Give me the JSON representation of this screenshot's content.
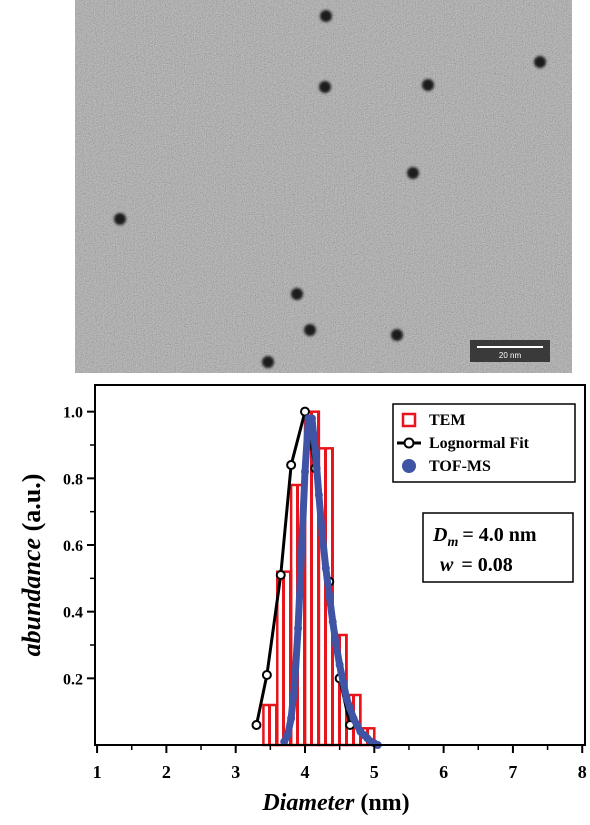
{
  "image": {
    "scale_bar": "20 nm"
  },
  "chart_data": {
    "type": "line",
    "xlabel": {
      "italic": "Diameter",
      "text": "(nm)"
    },
    "ylabel": {
      "italic": "abundance",
      "text": "(a.u.)"
    },
    "xlim": [
      0.97,
      8.04
    ],
    "xticks": [
      1,
      2,
      3,
      4,
      5,
      6,
      7,
      8
    ],
    "ylim": [
      0,
      1.08
    ],
    "yticks": [
      0.2,
      0.4,
      0.6,
      0.8,
      {
        "value": 1,
        "label": "1.0"
      }
    ],
    "legend": "upper right",
    "annotations": [
      {
        "symbol": "D",
        "subscript": "m",
        "text": "= 4.0 nm"
      },
      {
        "symbol": "w",
        "text": "= 0.08"
      }
    ],
    "series": [
      {
        "name": "TEM",
        "type": "histogram",
        "color": "#e8141b",
        "bins": [
          3.4,
          3.6,
          3.8,
          4.0,
          4.2,
          4.4,
          4.6,
          4.8,
          5.0
        ],
        "values": [
          0.12,
          0.52,
          0.78,
          1.0,
          0.89,
          0.33,
          0.15,
          0.05
        ]
      },
      {
        "name": "Lognormal Fit",
        "type": "line",
        "color": "#000000",
        "x": [
          3.3,
          3.45,
          3.65,
          3.8,
          4.0,
          4.15,
          4.35,
          4.5,
          4.65
        ],
        "values": [
          0.06,
          0.21,
          0.51,
          0.84,
          1.0,
          0.83,
          0.49,
          0.2,
          0.06
        ]
      },
      {
        "name": "TOF-MS",
        "type": "scatter",
        "color": "#3f54a5",
        "x": [
          3.7,
          3.75,
          3.8,
          3.85,
          3.9,
          3.95,
          4.0,
          4.05,
          4.1,
          4.15,
          4.2,
          4.25,
          4.3,
          4.35,
          4.4,
          4.45,
          4.5,
          4.55,
          4.6,
          4.65,
          4.7,
          4.75,
          4.8,
          4.85,
          4.9,
          4.95,
          5.0,
          5.05
        ],
        "values": [
          0.01,
          0.03,
          0.08,
          0.18,
          0.35,
          0.58,
          0.82,
          0.98,
          0.98,
          0.88,
          0.75,
          0.63,
          0.53,
          0.45,
          0.37,
          0.3,
          0.24,
          0.19,
          0.14,
          0.11,
          0.08,
          0.06,
          0.04,
          0.03,
          0.02,
          0.01,
          0.005,
          0
        ]
      }
    ]
  }
}
